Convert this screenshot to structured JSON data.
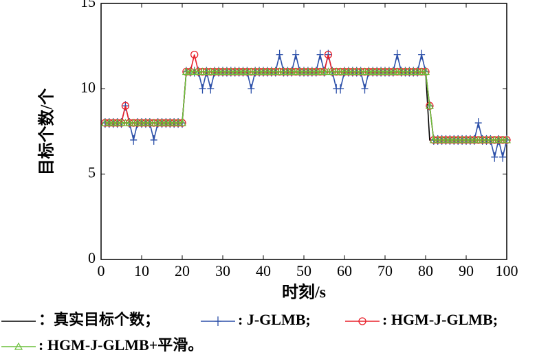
{
  "chart_data": {
    "type": "line",
    "x_label": "时刻/s",
    "y_label": "目标个数/个",
    "x": [
      1,
      2,
      3,
      4,
      5,
      6,
      7,
      8,
      9,
      10,
      11,
      12,
      13,
      14,
      15,
      16,
      17,
      18,
      19,
      20,
      21,
      22,
      23,
      24,
      25,
      26,
      27,
      28,
      29,
      30,
      31,
      32,
      33,
      34,
      35,
      36,
      37,
      38,
      39,
      40,
      41,
      42,
      43,
      44,
      45,
      46,
      47,
      48,
      49,
      50,
      51,
      52,
      53,
      54,
      55,
      56,
      57,
      58,
      59,
      60,
      61,
      62,
      63,
      64,
      65,
      66,
      67,
      68,
      69,
      70,
      71,
      72,
      73,
      74,
      75,
      76,
      77,
      78,
      79,
      80,
      81,
      82,
      83,
      84,
      85,
      86,
      87,
      88,
      89,
      90,
      91,
      92,
      93,
      94,
      95,
      96,
      97,
      98,
      99,
      100
    ],
    "series": [
      {
        "name": "：真实目标个数；",
        "color": "#000000",
        "marker": "none",
        "values": [
          8,
          8,
          8,
          8,
          8,
          8,
          8,
          8,
          8,
          8,
          8,
          8,
          8,
          8,
          8,
          8,
          8,
          8,
          8,
          8,
          11,
          11,
          11,
          11,
          11,
          11,
          11,
          11,
          11,
          11,
          11,
          11,
          11,
          11,
          11,
          11,
          11,
          11,
          11,
          11,
          11,
          11,
          11,
          11,
          11,
          11,
          11,
          11,
          11,
          11,
          11,
          11,
          11,
          11,
          11,
          11,
          11,
          11,
          11,
          11,
          11,
          11,
          11,
          11,
          11,
          11,
          11,
          11,
          11,
          11,
          11,
          11,
          11,
          11,
          11,
          11,
          11,
          11,
          11,
          11,
          7,
          7,
          7,
          7,
          7,
          7,
          7,
          7,
          7,
          7,
          7,
          7,
          7,
          7,
          7,
          7,
          7,
          7,
          7,
          7
        ]
      },
      {
        "name": ": J-GLMB;",
        "color": "#2b4fa8",
        "marker": "plus",
        "values": [
          8,
          8,
          8,
          8,
          8,
          9,
          8,
          7,
          8,
          8,
          8,
          8,
          7,
          8,
          8,
          8,
          8,
          8,
          8,
          8,
          11,
          11,
          11,
          11,
          10,
          11,
          10,
          11,
          11,
          11,
          11,
          11,
          11,
          11,
          11,
          11,
          10,
          11,
          11,
          11,
          11,
          11,
          11,
          12,
          11,
          11,
          11,
          12,
          11,
          11,
          11,
          11,
          11,
          12,
          11,
          12,
          11,
          10,
          10,
          11,
          11,
          11,
          11,
          11,
          10,
          11,
          11,
          11,
          11,
          11,
          11,
          11,
          12,
          11,
          11,
          11,
          11,
          11,
          12,
          11,
          9,
          7,
          7,
          7,
          7,
          7,
          7,
          7,
          7,
          7,
          7,
          7,
          8,
          7,
          7,
          7,
          6,
          7,
          6,
          7
        ]
      },
      {
        "name": ": HGM-J-GLMB;",
        "color": "#e8202a",
        "marker": "circle",
        "values": [
          8,
          8,
          8,
          8,
          8,
          9,
          8,
          8,
          8,
          8,
          8,
          8,
          8,
          8,
          8,
          8,
          8,
          8,
          8,
          8,
          11,
          11,
          12,
          11,
          11,
          11,
          11,
          11,
          11,
          11,
          11,
          11,
          11,
          11,
          11,
          11,
          11,
          11,
          11,
          11,
          11,
          11,
          11,
          11,
          11,
          11,
          11,
          11,
          11,
          11,
          11,
          11,
          11,
          11,
          11,
          12,
          11,
          11,
          11,
          11,
          11,
          11,
          11,
          11,
          11,
          11,
          11,
          11,
          11,
          11,
          11,
          11,
          11,
          11,
          11,
          11,
          11,
          11,
          11,
          11,
          9,
          7,
          7,
          7,
          7,
          7,
          7,
          7,
          7,
          7,
          7,
          7,
          7,
          7,
          7,
          7,
          7,
          7,
          7,
          7
        ]
      },
      {
        "name": ": HGM-J-GLMB+平滑。",
        "color": "#6abf3a",
        "marker": "triangle",
        "values": [
          8,
          8,
          8,
          8,
          8,
          8,
          8,
          8,
          8,
          8,
          8,
          8,
          8,
          8,
          8,
          8,
          8,
          8,
          8,
          8,
          11,
          11,
          11,
          11,
          11,
          11,
          11,
          11,
          11,
          11,
          11,
          11,
          11,
          11,
          11,
          11,
          11,
          11,
          11,
          11,
          11,
          11,
          11,
          11,
          11,
          11,
          11,
          11,
          11,
          11,
          11,
          11,
          11,
          11,
          11,
          11,
          11,
          11,
          11,
          11,
          11,
          11,
          11,
          11,
          11,
          11,
          11,
          11,
          11,
          11,
          11,
          11,
          11,
          11,
          11,
          11,
          11,
          11,
          11,
          11,
          9,
          7,
          7,
          7,
          7,
          7,
          7,
          7,
          7,
          7,
          7,
          7,
          7,
          7,
          7,
          7,
          7,
          7,
          7,
          7
        ]
      }
    ],
    "xlim": [
      0,
      100
    ],
    "xticks": [
      0,
      10,
      20,
      30,
      40,
      50,
      60,
      70,
      80,
      90,
      100
    ],
    "ylim": [
      0,
      15
    ],
    "yticks": [
      0,
      5,
      10,
      15
    ],
    "grid": false
  }
}
